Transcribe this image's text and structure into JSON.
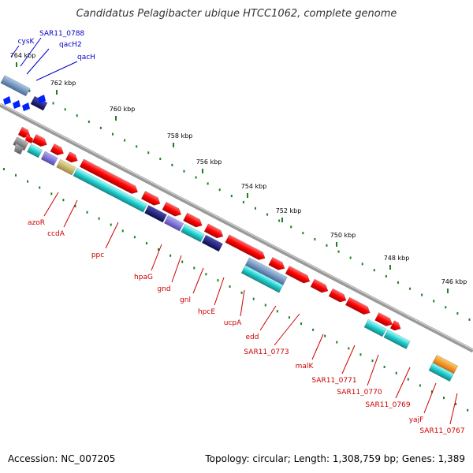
{
  "title": "Candidatus Pelagibacter ubique HTCC1062, complete genome",
  "footer": {
    "accession": "Accession: NC_007205",
    "topology": "Topology: circular; Length: 1,308,759 bp; Genes: 1,389"
  },
  "colors": {
    "background": "#ffffff",
    "backbone": "#888888",
    "tick_mark": "#1e7f1e",
    "gene_forward": "#ff0000",
    "label_reverse_strand": "#0000cc",
    "label_forward_strand": "#cc0000",
    "rna_gene": "#ff8800",
    "cyan_feature": "#22cccc",
    "blue_feature": "#1a1a80",
    "purple_feature": "#7766cc",
    "khaki_feature": "#c8b870",
    "gray_feature": "#777777"
  },
  "ticks": [
    "764 kbp",
    "762 kbp",
    "760 kbp",
    "758 kbp",
    "756 kbp",
    "754 kbp",
    "752 kbp",
    "750 kbp",
    "748 kbp",
    "746 kbp"
  ],
  "genes": {
    "reverse": [
      "cysK",
      "SAR11_0788",
      "qacH2",
      "qacH"
    ],
    "forward": [
      "azoR",
      "ccdA",
      "ppc",
      "hpaG",
      "gnd",
      "gnl",
      "hpcE",
      "ucpA",
      "edd",
      "SAR11_0773",
      "malK",
      "SAR11_0771",
      "SAR11_0770",
      "SAR11_0769",
      "yajF",
      "SAR11_0767"
    ]
  }
}
